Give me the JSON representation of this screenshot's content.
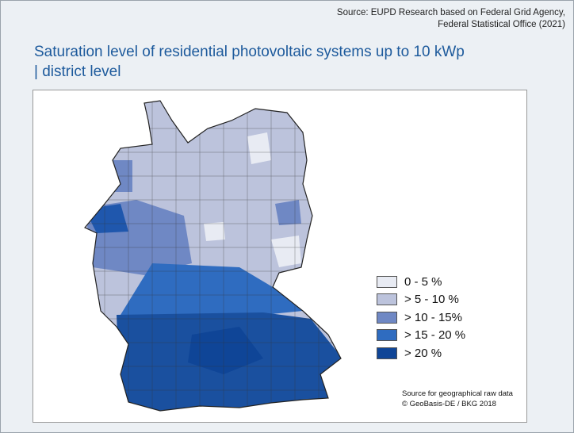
{
  "source": {
    "line1": "Source: EUPD Research based on Federal Grid Agency,",
    "line2": "Federal Statistical Office (2021)"
  },
  "title": {
    "line1": "Saturation level of residential photovoltaic systems up to  10 kWp",
    "line2": "| district level"
  },
  "legend": [
    {
      "label": "0 - 5 %",
      "color": "#e8ebf3"
    },
    {
      "label": "> 5 - 10 %",
      "color": "#bcc3dc"
    },
    {
      "label": "> 10 - 15%",
      "color": "#6f88c4"
    },
    {
      "label": "> 15 - 20 %",
      "color": "#2f6cc0"
    },
    {
      "label": "> 20 %",
      "color": "#0f4597"
    }
  ],
  "geo_source": {
    "line1": "Source for geographical raw data",
    "line2": "© GeoBasis-DE / BKG 2018"
  }
}
